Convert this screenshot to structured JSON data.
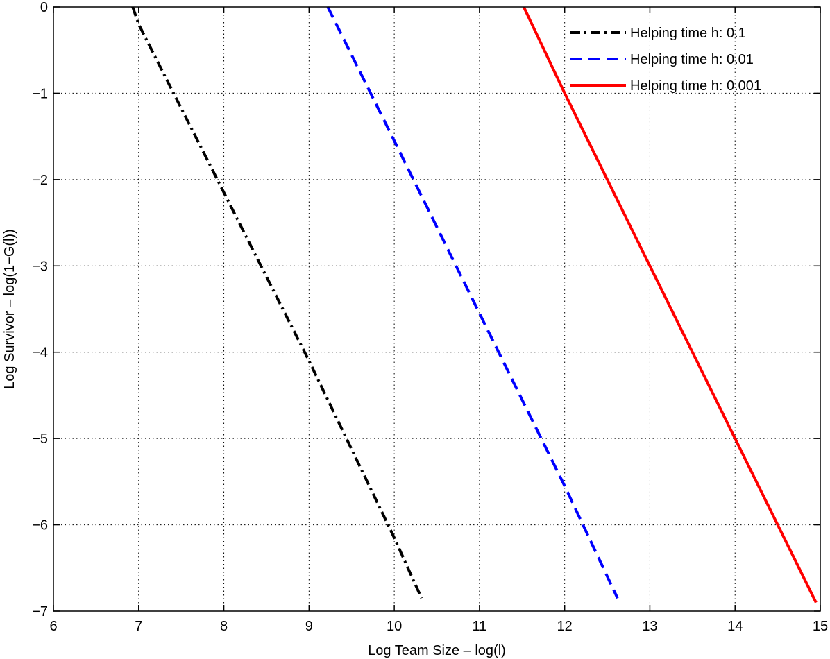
{
  "chart_data": {
    "type": "line",
    "xlabel": "Log Team Size – log(l)",
    "ylabel": "Log Survivor – log(1−G(l))",
    "xlim": [
      6,
      15
    ],
    "ylim": [
      -7,
      0
    ],
    "xticks": [
      6,
      7,
      8,
      9,
      10,
      11,
      12,
      13,
      14,
      15
    ],
    "yticks": [
      0,
      -1,
      -2,
      -3,
      -4,
      -5,
      -6,
      -7
    ],
    "xtick_labels": [
      "6",
      "7",
      "8",
      "9",
      "10",
      "11",
      "12",
      "13",
      "14",
      "15"
    ],
    "ytick_labels": [
      "0",
      "−1",
      "−2",
      "−3",
      "−4",
      "−5",
      "−6",
      "−7"
    ],
    "grid": true,
    "legend_position": "top-right",
    "series": [
      {
        "name": "Helping time h: 0.1",
        "color": "#000000",
        "style": "dash-dot",
        "x": [
          6.93,
          7.0,
          8.0,
          9.0,
          10.0,
          10.32
        ],
        "y": [
          0.0,
          -0.2,
          -2.15,
          -4.1,
          -6.15,
          -6.85
        ]
      },
      {
        "name": "Helping time h: 0.01",
        "color": "#0000ff",
        "style": "dashed",
        "x": [
          9.22,
          10.0,
          11.0,
          12.0,
          12.62
        ],
        "y": [
          0.0,
          -1.55,
          -3.55,
          -5.55,
          -6.85
        ]
      },
      {
        "name": "Helping time h: 0.001",
        "color": "#ff0000",
        "style": "solid",
        "x": [
          11.52,
          12.0,
          13.0,
          14.0,
          14.95
        ],
        "y": [
          0.0,
          -1.0,
          -3.0,
          -5.0,
          -6.9
        ]
      }
    ]
  }
}
